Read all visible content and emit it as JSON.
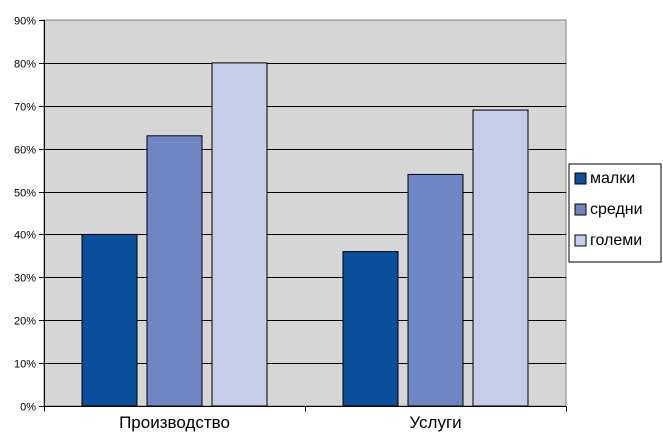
{
  "chart_data": {
    "type": "bar",
    "title": "",
    "xlabel": "",
    "ylabel": "",
    "categories": [
      "Производство",
      "Услуги"
    ],
    "series": [
      {
        "name": "малки",
        "values": [
          40,
          36
        ],
        "color": "#0a4f9e"
      },
      {
        "name": "средни",
        "values": [
          63,
          54
        ],
        "color": "#6f86c4"
      },
      {
        "name": "големи",
        "values": [
          80,
          69
        ],
        "color": "#c5cde9"
      }
    ],
    "ylim": [
      0,
      90
    ],
    "ytick_step": 10,
    "ytick_suffix": "%",
    "grid": true,
    "legend_position": "right",
    "plot_background": "#d6d6d6"
  }
}
